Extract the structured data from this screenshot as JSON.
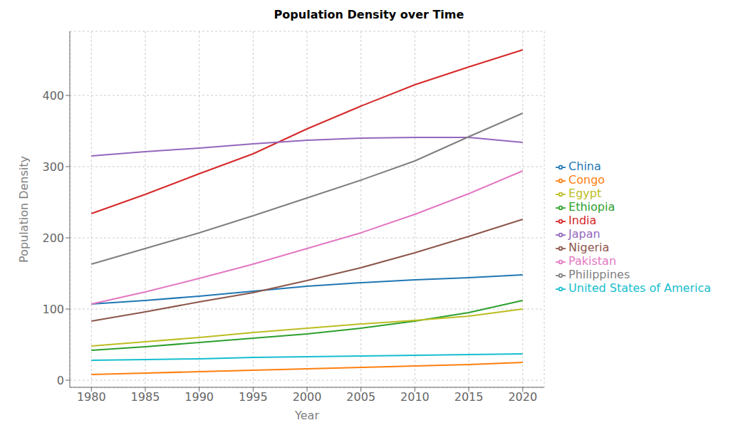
{
  "chart_data": {
    "type": "line",
    "title": "Population Density over Time",
    "xlabel": "Year",
    "ylabel": "Population Density",
    "x": [
      1980,
      1985,
      1990,
      1995,
      2000,
      2005,
      2010,
      2015,
      2020
    ],
    "series": [
      {
        "name": "China",
        "color": "#1f77b4",
        "values": [
          107,
          112,
          118,
          125,
          132,
          137,
          141,
          144,
          148
        ]
      },
      {
        "name": "Congo",
        "color": "#ff7f0e",
        "values": [
          8,
          10,
          12,
          14,
          16,
          18,
          20,
          22,
          25
        ]
      },
      {
        "name": "Ethiopia",
        "color": "#2ca02c",
        "values": [
          42,
          47,
          53,
          59,
          65,
          73,
          83,
          95,
          112
        ]
      },
      {
        "name": "India",
        "color": "#d62728",
        "values": [
          234,
          261,
          290,
          318,
          353,
          385,
          415,
          440,
          464
        ]
      },
      {
        "name": "Japan",
        "color": "#9467bd",
        "values": [
          315,
          321,
          326,
          332,
          337,
          340,
          341,
          341,
          334
        ]
      },
      {
        "name": "Nigeria",
        "color": "#8c564b",
        "values": [
          83,
          96,
          110,
          123,
          140,
          158,
          179,
          202,
          226
        ]
      },
      {
        "name": "Pakistan",
        "color": "#e377c2",
        "values": [
          107,
          124,
          143,
          163,
          185,
          207,
          233,
          262,
          294
        ]
      },
      {
        "name": "Philippines",
        "color": "#7f7f7f",
        "values": [
          163,
          185,
          207,
          231,
          256,
          281,
          308,
          342,
          375
        ]
      },
      {
        "name": "Egypt",
        "color": "#bcbd22",
        "values": [
          48,
          54,
          60,
          67,
          73,
          79,
          84,
          90,
          100
        ]
      },
      {
        "name": "United States of America",
        "color": "#17becf",
        "values": [
          28,
          29,
          30,
          32,
          33,
          34,
          35,
          36,
          37
        ]
      }
    ],
    "xlim": [
      1978,
      2022
    ],
    "xticks": [
      1980,
      1985,
      1990,
      1995,
      2000,
      2005,
      2010,
      2015,
      2020
    ],
    "ylim": [
      -10,
      490
    ],
    "yticks": [
      0,
      100,
      200,
      300,
      400
    ],
    "grid": true,
    "legend": "right"
  }
}
